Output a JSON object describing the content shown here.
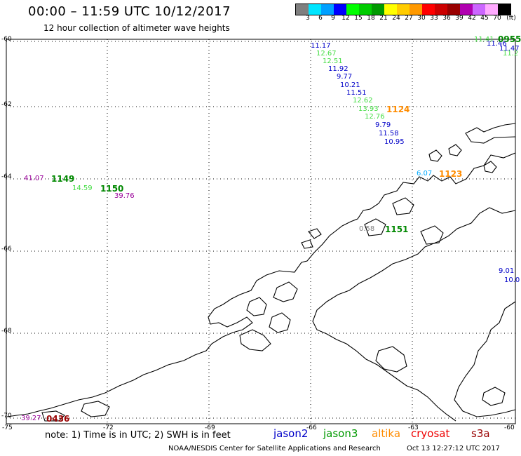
{
  "header": {
    "title": "00:00 – 11:59 UTC 10/12/2017",
    "subtitle": "12 hour collection of altimeter wave heights"
  },
  "colorbar": {
    "colors": [
      "#7f7f7f",
      "#00e5ff",
      "#00a0ff",
      "#0000ff",
      "#00ff00",
      "#00cc00",
      "#009900",
      "#ffff00",
      "#ffcc00",
      "#ff9900",
      "#ff0000",
      "#cc0000",
      "#990000",
      "#b000b0",
      "#cc66ff",
      "#ffaaff",
      "#000000"
    ],
    "ticks": [
      "3",
      "6",
      "9",
      "12",
      "15",
      "18",
      "21",
      "24",
      "27",
      "30",
      "33",
      "36",
      "39",
      "42",
      "45",
      "70"
    ],
    "unit": "(ft)"
  },
  "grid": {
    "lat_labels": [
      "-60",
      "-62",
      "-64",
      "-66",
      "-68",
      "-70"
    ],
    "lon_labels": [
      "-75",
      "-72",
      "-69",
      "-66",
      "-63",
      "-60"
    ]
  },
  "observations": [
    {
      "text": "11.17",
      "color": "#0000c8"
    },
    {
      "text": "12.67",
      "color": "#44dd44"
    },
    {
      "text": "12.51",
      "color": "#44dd44"
    },
    {
      "text": "11.92",
      "color": "#0000c8"
    },
    {
      "text": "9.77",
      "color": "#0000c8"
    },
    {
      "text": "10.21",
      "color": "#0000c8"
    },
    {
      "text": "11.51",
      "color": "#0000c8"
    },
    {
      "text": "12.62",
      "color": "#44dd44"
    },
    {
      "text": "13.93",
      "color": "#44dd44"
    },
    {
      "text": "12.76",
      "color": "#44dd44"
    },
    {
      "text": "9.79",
      "color": "#0000c8"
    },
    {
      "text": "11.58",
      "color": "#0000c8"
    },
    {
      "text": "10.95",
      "color": "#0000c8"
    },
    {
      "text": "41.07",
      "color": "#990099"
    },
    {
      "text": "14.59",
      "color": "#44dd44"
    },
    {
      "text": "39.76",
      "color": "#990099"
    },
    {
      "text": "6.07",
      "color": "#00aaff"
    },
    {
      "text": "0.58",
      "color": "#7f7f7f"
    },
    {
      "text": "9.01",
      "color": "#0000c8"
    },
    {
      "text": "10.0",
      "color": "#0000c8"
    },
    {
      "text": "39.27",
      "color": "#990099"
    },
    {
      "text": "11.41",
      "color": "#44dd44"
    },
    {
      "text": "11.46",
      "color": "#0000c8"
    },
    {
      "text": "11.47",
      "color": "#0000c8"
    },
    {
      "text": "11.2",
      "color": "#44dd44"
    }
  ],
  "passes": [
    {
      "text": "1124",
      "color": "#ff8c00"
    },
    {
      "text": "1149",
      "color": "#008800"
    },
    {
      "text": "1150",
      "color": "#008800"
    },
    {
      "text": "1123",
      "color": "#ff8c00"
    },
    {
      "text": "1151",
      "color": "#008800"
    },
    {
      "text": "0436",
      "color": "#990000"
    },
    {
      "text": "0955",
      "color": "#008800"
    }
  ],
  "footer": {
    "note": "note: 1) Time is in UTC; 2) SWH is in feet",
    "legend": [
      {
        "name": "jason2",
        "color": "#0000c8"
      },
      {
        "name": "jason3",
        "color": "#009900"
      },
      {
        "name": "altika",
        "color": "#ff8c00"
      },
      {
        "name": "cryosat",
        "color": "#ee0000"
      },
      {
        "name": "s3a",
        "color": "#990000"
      }
    ],
    "credit": "NOAA/NESDIS Center for Satellite Applications and Research",
    "timestamp": "Oct 13 12:27:12 UTC 2017"
  }
}
